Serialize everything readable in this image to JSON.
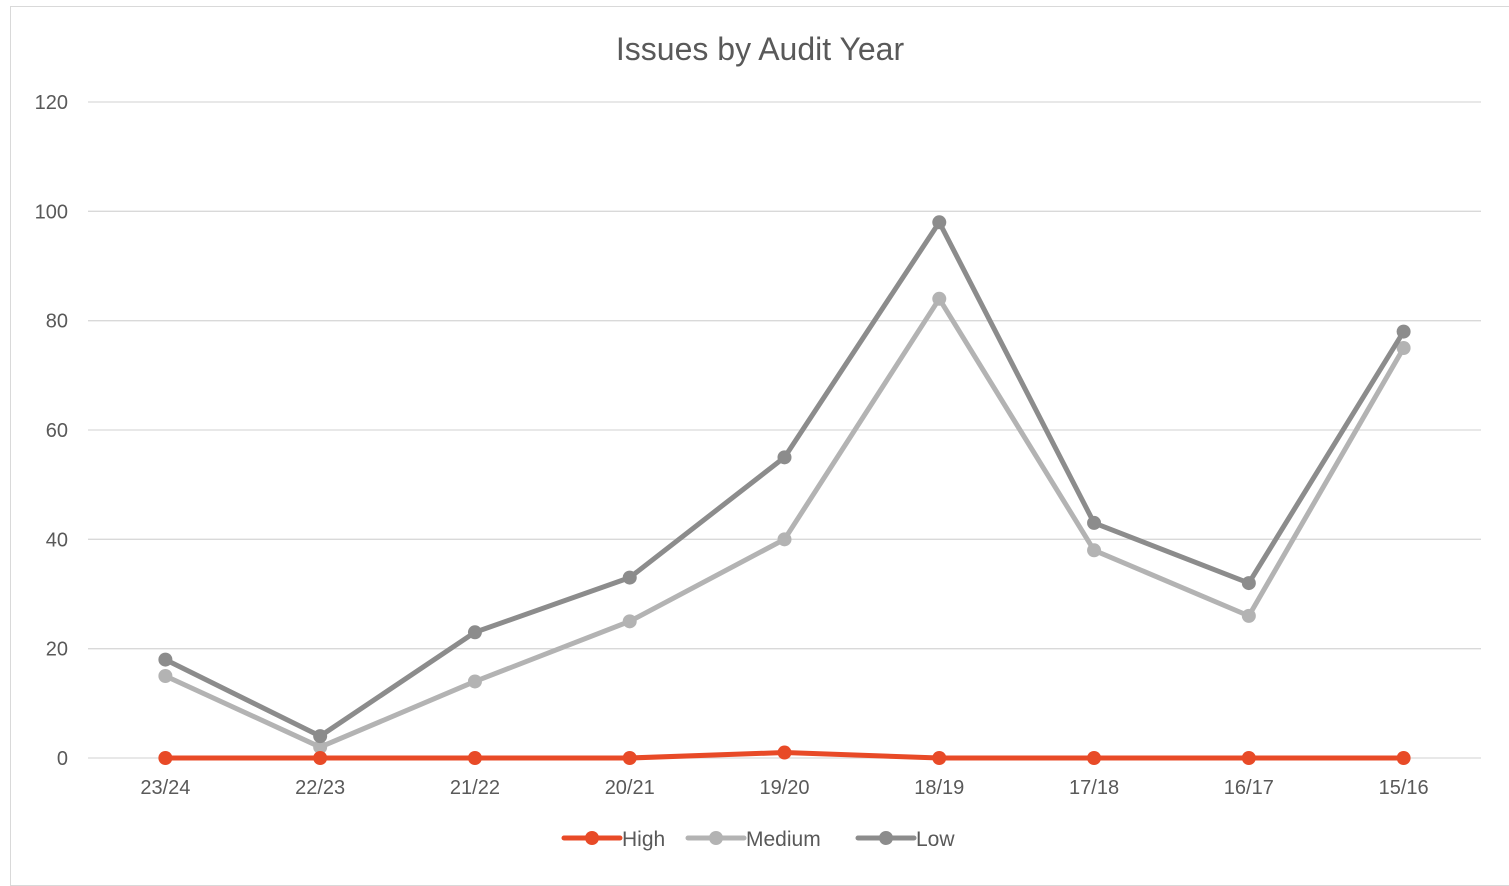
{
  "chart_data": {
    "type": "line",
    "title": "Issues by Audit Year",
    "xlabel": "",
    "ylabel": "",
    "categories": [
      "23/24",
      "22/23",
      "21/22",
      "20/21",
      "19/20",
      "18/19",
      "17/18",
      "16/17",
      "15/16"
    ],
    "ylim": [
      0,
      120
    ],
    "yticks": [
      0,
      20,
      40,
      60,
      80,
      100,
      120
    ],
    "grid": true,
    "legend": "bottom",
    "series": [
      {
        "name": "High",
        "color": "#e84a27",
        "values": [
          0,
          0,
          0,
          0,
          1,
          0,
          0,
          0,
          0
        ]
      },
      {
        "name": "Medium",
        "color": "#b3b3b3",
        "values": [
          15,
          2,
          14,
          25,
          40,
          84,
          38,
          26,
          75
        ]
      },
      {
        "name": "Low",
        "color": "#8c8c8c",
        "values": [
          18,
          4,
          23,
          33,
          55,
          98,
          43,
          32,
          78
        ]
      }
    ]
  }
}
